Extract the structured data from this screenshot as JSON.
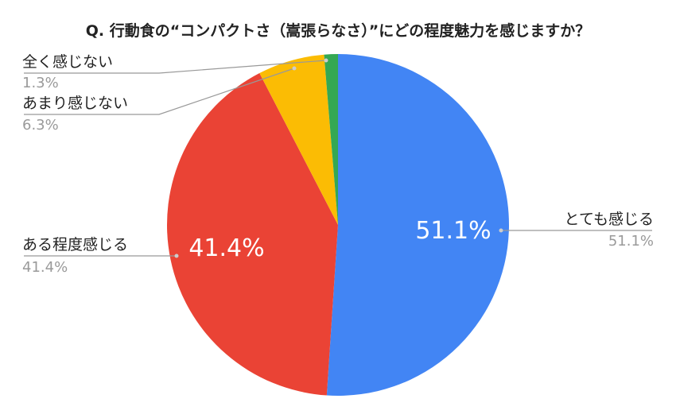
{
  "chart_data": {
    "type": "pie",
    "title": "Q. 行動食の“コンパクトさ（嵩張らなさ）”にどの程度魅力を感じますか？",
    "slices": [
      {
        "label": "とても感じる",
        "value": 51.1,
        "display": "51.1%",
        "color": "#4285f4"
      },
      {
        "label": "ある程度感じる",
        "value": 41.4,
        "display": "41.4%",
        "color": "#ea4335"
      },
      {
        "label": "あまり感じない",
        "value": 6.3,
        "display": "6.3%",
        "color": "#fbbc04"
      },
      {
        "label": "全く感じない",
        "value": 1.3,
        "display": "1.3%",
        "color": "#34a853"
      }
    ],
    "inner_labels": [
      "51.1%",
      "41.4%"
    ],
    "start_angle": "top",
    "direction": "clockwise",
    "legend": "none"
  }
}
